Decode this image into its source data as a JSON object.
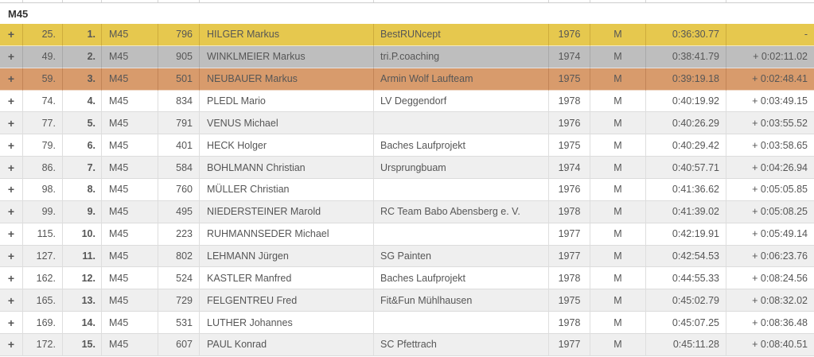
{
  "group_header": "M45",
  "colors": {
    "gold": "#e6c84e",
    "silver": "#bebebe",
    "bronze": "#d89b6c",
    "row_alt_grey": "#efefef",
    "row_white": "#ffffff"
  },
  "rows": [
    {
      "expand": "+",
      "place": "25.",
      "cat_place": "1.",
      "category": "M45",
      "bib": "796",
      "name": "HILGER Markus",
      "team": "BestRUNcept",
      "year": "1976",
      "sex": "M",
      "time": "0:36:30.77",
      "gap": "-",
      "medal": "gold"
    },
    {
      "expand": "+",
      "place": "49.",
      "cat_place": "2.",
      "category": "M45",
      "bib": "905",
      "name": "WINKLMEIER Markus",
      "team": "tri.P.coaching",
      "year": "1974",
      "sex": "M",
      "time": "0:38:41.79",
      "gap": "+ 0:02:11.02",
      "medal": "silver"
    },
    {
      "expand": "+",
      "place": "59.",
      "cat_place": "3.",
      "category": "M45",
      "bib": "501",
      "name": "NEUBAUER Markus",
      "team": "Armin Wolf Laufteam",
      "year": "1975",
      "sex": "M",
      "time": "0:39:19.18",
      "gap": "+ 0:02:48.41",
      "medal": "bronze"
    },
    {
      "expand": "+",
      "place": "74.",
      "cat_place": "4.",
      "category": "M45",
      "bib": "834",
      "name": "PLEDL Mario",
      "team": "LV Deggendorf",
      "year": "1978",
      "sex": "M",
      "time": "0:40:19.92",
      "gap": "+ 0:03:49.15",
      "medal": ""
    },
    {
      "expand": "+",
      "place": "77.",
      "cat_place": "5.",
      "category": "M45",
      "bib": "791",
      "name": "VENUS Michael",
      "team": "",
      "year": "1976",
      "sex": "M",
      "time": "0:40:26.29",
      "gap": "+ 0:03:55.52",
      "medal": ""
    },
    {
      "expand": "+",
      "place": "79.",
      "cat_place": "6.",
      "category": "M45",
      "bib": "401",
      "name": "HECK Holger",
      "team": "Baches Laufprojekt",
      "year": "1975",
      "sex": "M",
      "time": "0:40:29.42",
      "gap": "+ 0:03:58.65",
      "medal": ""
    },
    {
      "expand": "+",
      "place": "86.",
      "cat_place": "7.",
      "category": "M45",
      "bib": "584",
      "name": "BOHLMANN Christian",
      "team": "Ursprungbuam",
      "year": "1974",
      "sex": "M",
      "time": "0:40:57.71",
      "gap": "+ 0:04:26.94",
      "medal": ""
    },
    {
      "expand": "+",
      "place": "98.",
      "cat_place": "8.",
      "category": "M45",
      "bib": "760",
      "name": "MÜLLER Christian",
      "team": "",
      "year": "1976",
      "sex": "M",
      "time": "0:41:36.62",
      "gap": "+ 0:05:05.85",
      "medal": ""
    },
    {
      "expand": "+",
      "place": "99.",
      "cat_place": "9.",
      "category": "M45",
      "bib": "495",
      "name": "NIEDERSTEINER Marold",
      "team": "RC Team Babo Abensberg e. V.",
      "year": "1978",
      "sex": "M",
      "time": "0:41:39.02",
      "gap": "+ 0:05:08.25",
      "medal": ""
    },
    {
      "expand": "+",
      "place": "115.",
      "cat_place": "10.",
      "category": "M45",
      "bib": "223",
      "name": "RUHMANNSEDER Michael",
      "team": "",
      "year": "1977",
      "sex": "M",
      "time": "0:42:19.91",
      "gap": "+ 0:05:49.14",
      "medal": ""
    },
    {
      "expand": "+",
      "place": "127.",
      "cat_place": "11.",
      "category": "M45",
      "bib": "802",
      "name": "LEHMANN Jürgen",
      "team": "SG Painten",
      "year": "1977",
      "sex": "M",
      "time": "0:42:54.53",
      "gap": "+ 0:06:23.76",
      "medal": ""
    },
    {
      "expand": "+",
      "place": "162.",
      "cat_place": "12.",
      "category": "M45",
      "bib": "524",
      "name": "KASTLER Manfred",
      "team": "Baches Laufprojekt",
      "year": "1978",
      "sex": "M",
      "time": "0:44:55.33",
      "gap": "+ 0:08:24.56",
      "medal": ""
    },
    {
      "expand": "+",
      "place": "165.",
      "cat_place": "13.",
      "category": "M45",
      "bib": "729",
      "name": "FELGENTREU Fred",
      "team": "Fit&Fun Mühlhausen",
      "year": "1975",
      "sex": "M",
      "time": "0:45:02.79",
      "gap": "+ 0:08:32.02",
      "medal": ""
    },
    {
      "expand": "+",
      "place": "169.",
      "cat_place": "14.",
      "category": "M45",
      "bib": "531",
      "name": "LUTHER Johannes",
      "team": "",
      "year": "1978",
      "sex": "M",
      "time": "0:45:07.25",
      "gap": "+ 0:08:36.48",
      "medal": ""
    },
    {
      "expand": "+",
      "place": "172.",
      "cat_place": "15.",
      "category": "M45",
      "bib": "607",
      "name": "PAUL Konrad",
      "team": "SC Pfettrach",
      "year": "1977",
      "sex": "M",
      "time": "0:45:11.28",
      "gap": "+ 0:08:40.51",
      "medal": ""
    }
  ]
}
